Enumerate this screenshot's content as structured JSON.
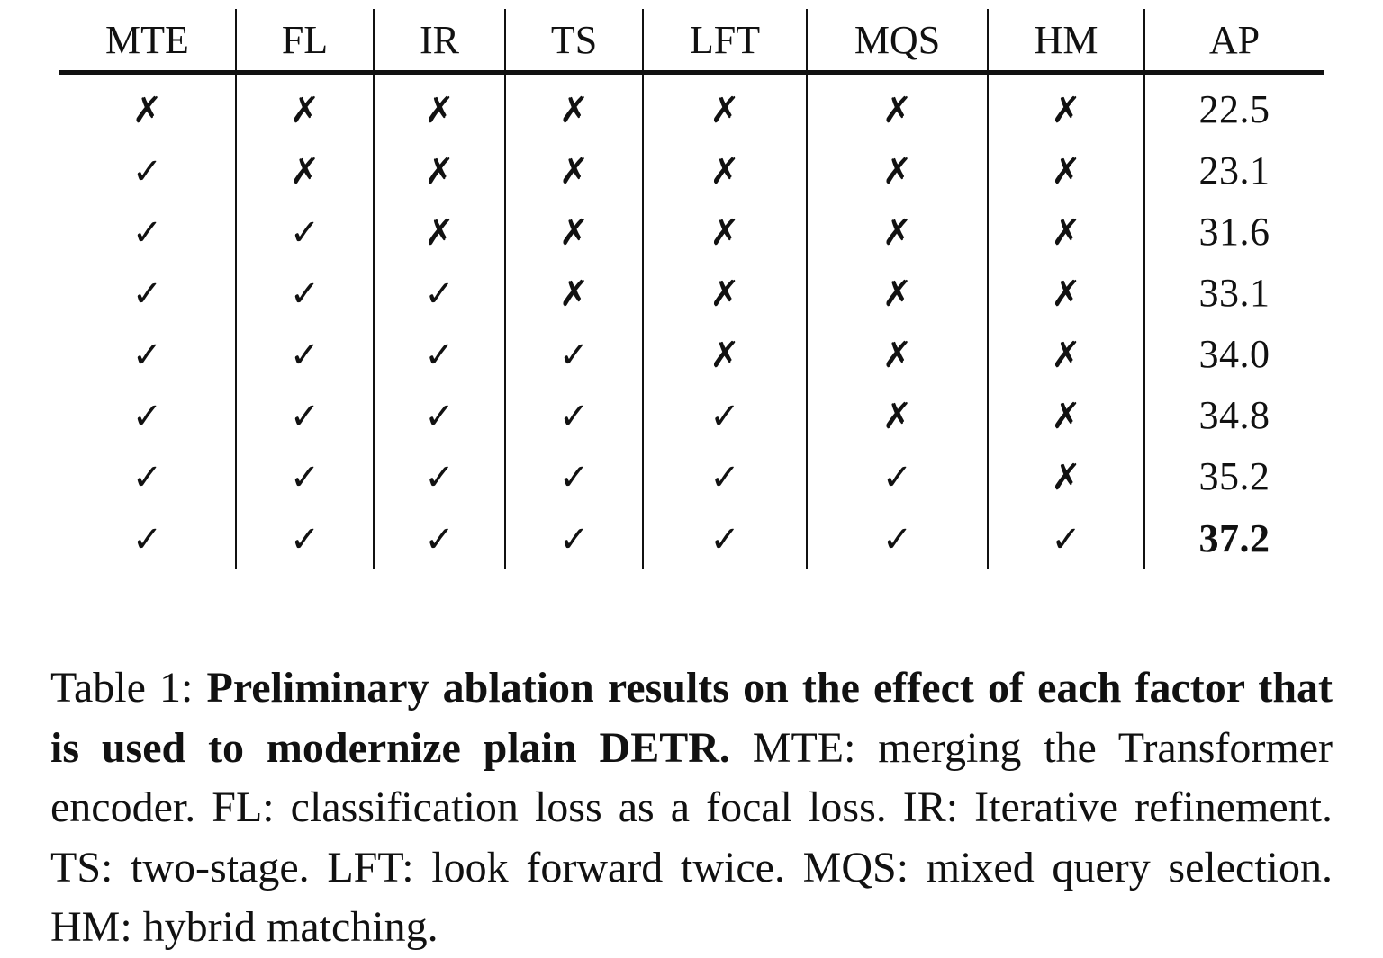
{
  "table": {
    "columns": [
      "MTE",
      "FL",
      "IR",
      "TS",
      "LFT",
      "MQS",
      "HM",
      "AP"
    ],
    "check_symbol": "✓",
    "cross_symbol": "✗",
    "rows": [
      {
        "flags": [
          "✗",
          "✗",
          "✗",
          "✗",
          "✗",
          "✗",
          "✗"
        ],
        "ap": "22.5"
      },
      {
        "flags": [
          "✓",
          "✗",
          "✗",
          "✗",
          "✗",
          "✗",
          "✗"
        ],
        "ap": "23.1"
      },
      {
        "flags": [
          "✓",
          "✓",
          "✗",
          "✗",
          "✗",
          "✗",
          "✗"
        ],
        "ap": "31.6"
      },
      {
        "flags": [
          "✓",
          "✓",
          "✓",
          "✗",
          "✗",
          "✗",
          "✗"
        ],
        "ap": "33.1"
      },
      {
        "flags": [
          "✓",
          "✓",
          "✓",
          "✓",
          "✗",
          "✗",
          "✗"
        ],
        "ap": "34.0"
      },
      {
        "flags": [
          "✓",
          "✓",
          "✓",
          "✓",
          "✓",
          "✗",
          "✗"
        ],
        "ap": "34.8"
      },
      {
        "flags": [
          "✓",
          "✓",
          "✓",
          "✓",
          "✓",
          "✓",
          "✗"
        ],
        "ap": "35.2"
      },
      {
        "flags": [
          "✓",
          "✓",
          "✓",
          "✓",
          "✓",
          "✓",
          "✓"
        ],
        "ap": "37.2"
      }
    ]
  },
  "caption": {
    "label": "Table 1:",
    "title": "Preliminary ablation results on the effect of each factor that is used to modernize plain DETR.",
    "body": "MTE: merging the Transformer encoder.  FL: classification loss as a focal loss.  IR: Iterative refinement.  TS: two-stage.  LFT: look forward twice. MQS: mixed query selection. HM: hybrid matching."
  }
}
